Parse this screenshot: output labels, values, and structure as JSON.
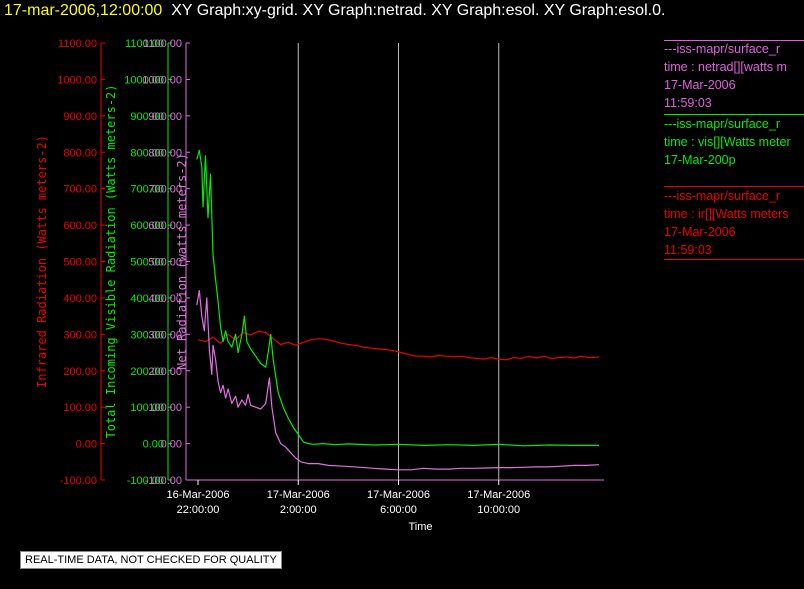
{
  "header": {
    "timestamp": "17-mar-2006,12:00:00",
    "titles": "XY Graph:xy-grid.  XY Graph:netrad.  XY Graph:esol.  XY Graph:esol.0."
  },
  "legend": [
    {
      "color": "#e060e0",
      "lines": [
        "---iss-mapr/surface_r",
        "time : netrad[][watts m",
        "17-Mar-2006",
        "11:59:03"
      ]
    },
    {
      "color": "#00ee00",
      "lines": [
        "---iss-mapr/surface_r",
        "time : vis[][Watts meter",
        "17-Mar-200p"
      ]
    },
    {
      "color": "#ee0000",
      "lines": [
        "---iss-mapr/surface_r",
        "time : ir[][Watts meters",
        "17-Mar-2006",
        "11:59:03"
      ]
    }
  ],
  "quality_note": "REAL-TIME DATA, NOT CHECKED FOR QUALITY",
  "chart_data": {
    "type": "line",
    "xlabel": "Time",
    "x_ticks": [
      {
        "line1": "16-Mar-2006",
        "line2": "22:00:00"
      },
      {
        "line1": "17-Mar-2006",
        "line2": "2:00:00"
      },
      {
        "line1": "17-Mar-2006",
        "line2": "6:00:00"
      },
      {
        "line1": "17-Mar-2006",
        "line2": "10:00:00"
      }
    ],
    "x_range_hours": [
      -0.2,
      16.2
    ],
    "x_tick_hours": [
      0,
      4,
      8,
      12
    ],
    "vgrid_hours": [
      4,
      8,
      12
    ],
    "ylim": [
      -100,
      1100
    ],
    "y_ticks": [
      -100,
      0,
      100,
      200,
      300,
      400,
      500,
      600,
      700,
      800,
      900,
      1000,
      1100
    ],
    "axes": [
      {
        "label": "Infrared Radiation (Watts meters-2)",
        "color": "#ee0000"
      },
      {
        "label": "Total Incoming Visible Radiation (Watts meters-2)",
        "color": "#00ee00"
      },
      {
        "label": "Net Radiation (watts meters-2)",
        "color": "#e070e0"
      }
    ],
    "series": [
      {
        "color": "#ee0000",
        "points": [
          [
            0,
            285
          ],
          [
            0.3,
            280
          ],
          [
            0.6,
            292
          ],
          [
            0.9,
            275
          ],
          [
            1.2,
            300
          ],
          [
            1.5,
            285
          ],
          [
            1.8,
            305
          ],
          [
            2.1,
            298
          ],
          [
            2.4,
            308
          ],
          [
            2.7,
            305
          ],
          [
            3.0,
            288
          ],
          [
            3.3,
            272
          ],
          [
            3.6,
            278
          ],
          [
            3.9,
            270
          ],
          [
            4.2,
            278
          ],
          [
            4.5,
            285
          ],
          [
            4.8,
            288
          ],
          [
            5.1,
            286
          ],
          [
            5.4,
            282
          ],
          [
            5.7,
            276
          ],
          [
            6.0,
            272
          ],
          [
            6.3,
            270
          ],
          [
            6.6,
            265
          ],
          [
            6.9,
            262
          ],
          [
            7.2,
            260
          ],
          [
            7.5,
            258
          ],
          [
            7.8,
            255
          ],
          [
            8.1,
            250
          ],
          [
            8.4,
            245
          ],
          [
            8.7,
            240
          ],
          [
            9.0,
            240
          ],
          [
            9.3,
            238
          ],
          [
            9.6,
            242
          ],
          [
            9.9,
            240
          ],
          [
            10.2,
            238
          ],
          [
            10.5,
            240
          ],
          [
            10.8,
            236
          ],
          [
            11.1,
            234
          ],
          [
            11.4,
            232
          ],
          [
            11.7,
            236
          ],
          [
            12.0,
            232
          ],
          [
            12.3,
            230
          ],
          [
            12.6,
            236
          ],
          [
            12.9,
            234
          ],
          [
            13.2,
            240
          ],
          [
            13.5,
            235
          ],
          [
            13.8,
            240
          ],
          [
            14.1,
            234
          ],
          [
            14.4,
            236
          ],
          [
            14.7,
            238
          ],
          [
            15.0,
            235
          ],
          [
            15.3,
            240
          ],
          [
            15.6,
            236
          ],
          [
            15.9,
            237
          ],
          [
            16.0,
            238
          ]
        ]
      },
      {
        "color": "#00ee00",
        "points": [
          [
            -0.05,
            780
          ],
          [
            0.05,
            805
          ],
          [
            0.15,
            760
          ],
          [
            0.2,
            650
          ],
          [
            0.3,
            790
          ],
          [
            0.4,
            620
          ],
          [
            0.5,
            740
          ],
          [
            0.6,
            520
          ],
          [
            0.7,
            450
          ],
          [
            0.8,
            390
          ],
          [
            0.9,
            320
          ],
          [
            1.0,
            280
          ],
          [
            1.1,
            310
          ],
          [
            1.2,
            280
          ],
          [
            1.35,
            265
          ],
          [
            1.5,
            300
          ],
          [
            1.6,
            250
          ],
          [
            1.75,
            300
          ],
          [
            1.85,
            350
          ],
          [
            1.95,
            280
          ],
          [
            2.1,
            260
          ],
          [
            2.3,
            240
          ],
          [
            2.5,
            220
          ],
          [
            2.7,
            210
          ],
          [
            2.8,
            250
          ],
          [
            2.9,
            300
          ],
          [
            3.0,
            230
          ],
          [
            3.2,
            140
          ],
          [
            3.4,
            100
          ],
          [
            3.6,
            70
          ],
          [
            3.8,
            45
          ],
          [
            4.0,
            25
          ],
          [
            4.2,
            5
          ],
          [
            4.4,
            0
          ],
          [
            4.6,
            -2
          ],
          [
            5.0,
            0
          ],
          [
            5.5,
            -3
          ],
          [
            6.0,
            -1
          ],
          [
            7.0,
            -4
          ],
          [
            8.0,
            -2
          ],
          [
            9.0,
            -5
          ],
          [
            10.0,
            -3
          ],
          [
            11.0,
            -5
          ],
          [
            12.0,
            -2
          ],
          [
            13.0,
            -6
          ],
          [
            14.0,
            -4
          ],
          [
            15.0,
            -5
          ],
          [
            16.0,
            -5
          ]
        ]
      },
      {
        "color": "#e070e0",
        "points": [
          [
            -0.05,
            380
          ],
          [
            0.05,
            420
          ],
          [
            0.15,
            350
          ],
          [
            0.25,
            310
          ],
          [
            0.35,
            400
          ],
          [
            0.45,
            260
          ],
          [
            0.55,
            190
          ],
          [
            0.6,
            270
          ],
          [
            0.7,
            230
          ],
          [
            0.8,
            170
          ],
          [
            0.9,
            140
          ],
          [
            1.0,
            160
          ],
          [
            1.1,
            125
          ],
          [
            1.2,
            150
          ],
          [
            1.35,
            110
          ],
          [
            1.5,
            130
          ],
          [
            1.6,
            100
          ],
          [
            1.75,
            120
          ],
          [
            1.9,
            105
          ],
          [
            2.0,
            135
          ],
          [
            2.1,
            105
          ],
          [
            2.3,
            100
          ],
          [
            2.5,
            95
          ],
          [
            2.7,
            110
          ],
          [
            2.85,
            180
          ],
          [
            2.95,
            100
          ],
          [
            3.1,
            30
          ],
          [
            3.3,
            0
          ],
          [
            3.5,
            -10
          ],
          [
            3.7,
            -25
          ],
          [
            3.9,
            -40
          ],
          [
            4.1,
            -50
          ],
          [
            4.4,
            -55
          ],
          [
            4.8,
            -55
          ],
          [
            5.2,
            -60
          ],
          [
            5.8,
            -62
          ],
          [
            6.5,
            -65
          ],
          [
            7.0,
            -68
          ],
          [
            7.5,
            -70
          ],
          [
            8.0,
            -72
          ],
          [
            8.5,
            -72
          ],
          [
            9.0,
            -68
          ],
          [
            9.5,
            -70
          ],
          [
            10.0,
            -70
          ],
          [
            10.5,
            -68
          ],
          [
            11.0,
            -68
          ],
          [
            11.5,
            -67
          ],
          [
            12.0,
            -66
          ],
          [
            12.5,
            -66
          ],
          [
            13.0,
            -65
          ],
          [
            13.5,
            -64
          ],
          [
            14.0,
            -64
          ],
          [
            14.5,
            -62
          ],
          [
            15.0,
            -60
          ],
          [
            15.5,
            -60
          ],
          [
            16.0,
            -58
          ]
        ]
      }
    ]
  }
}
